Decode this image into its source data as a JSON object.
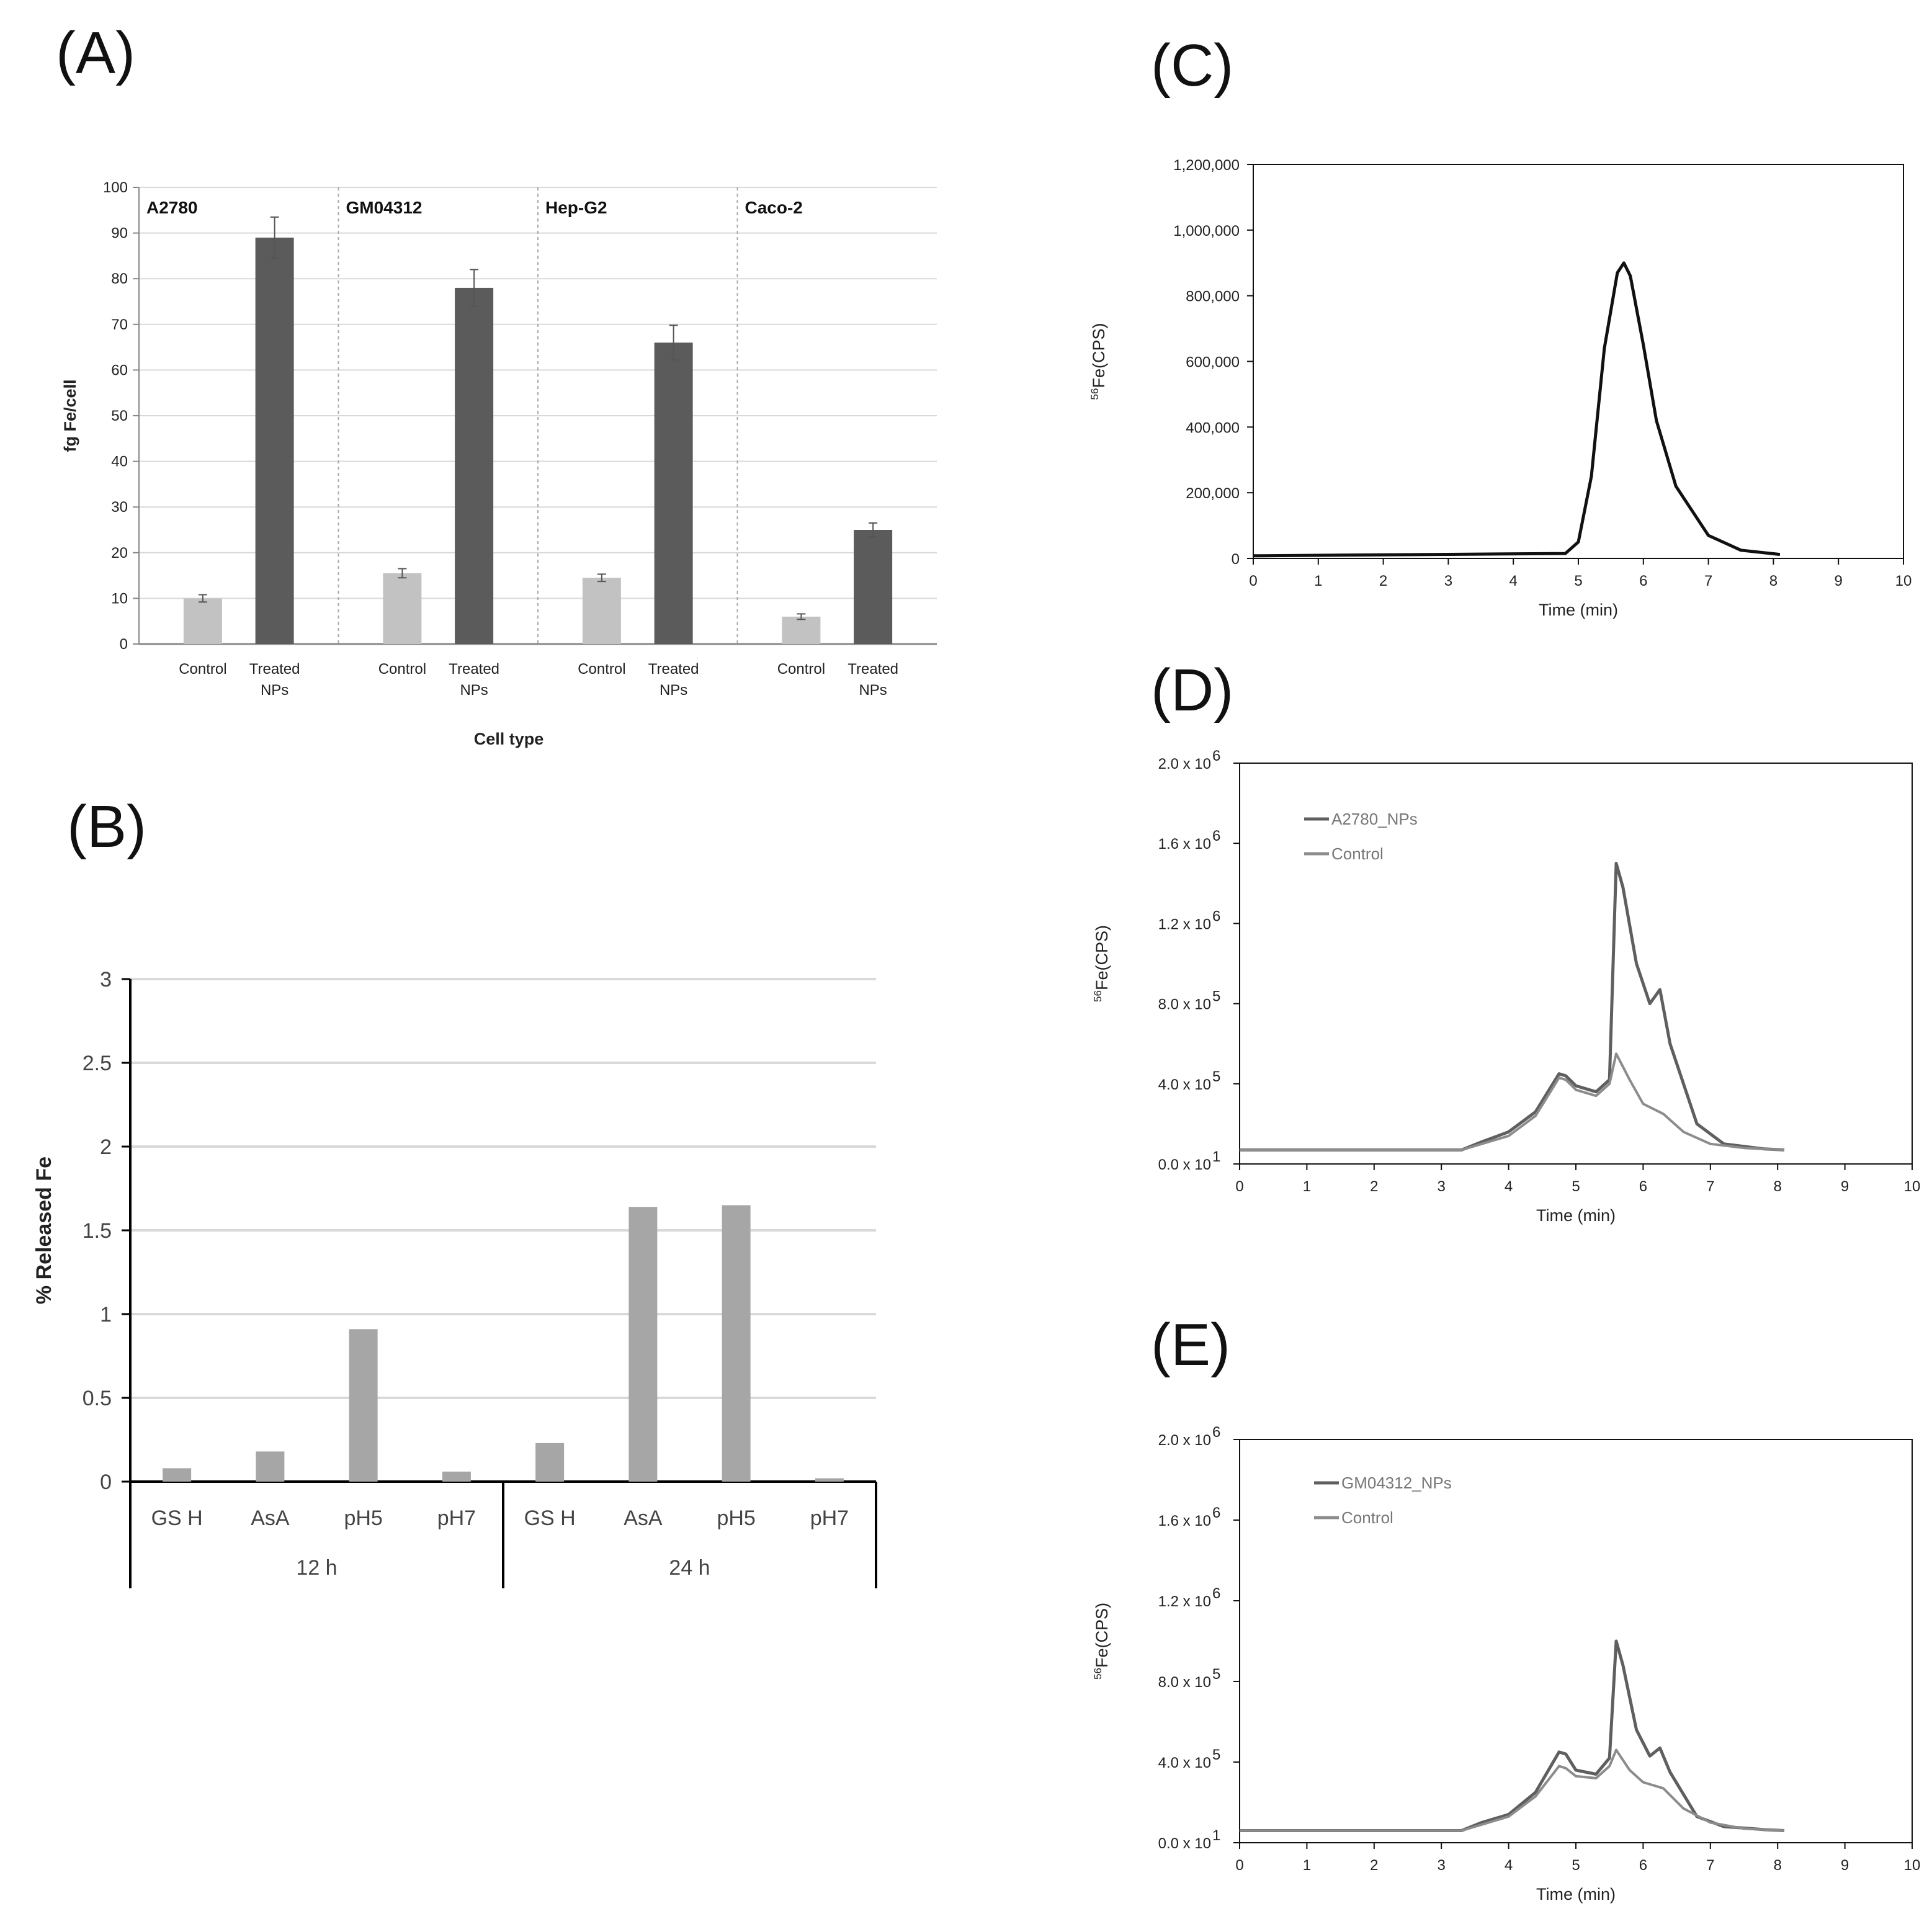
{
  "panels": {
    "A": "(A)",
    "B": "(B)",
    "C": "(C)",
    "D": "(D)",
    "E": "(E)"
  },
  "chart_data": [
    {
      "id": "A",
      "type": "bar",
      "ylabel": "fg Fe/cell",
      "xlabel": "Cell type",
      "ylim": [
        0,
        100
      ],
      "yticks": [
        "0",
        "10",
        "20",
        "30",
        "40",
        "50",
        "60",
        "70",
        "80",
        "90",
        "100"
      ],
      "groups": [
        {
          "name": "A2780",
          "labels": [
            "Control",
            "Treated NPs"
          ],
          "values": [
            10,
            89
          ],
          "errors": [
            0.8,
            4.5
          ]
        },
        {
          "name": "GM04312",
          "labels": [
            "Control",
            "Treated NPs"
          ],
          "values": [
            15.5,
            78
          ],
          "errors": [
            1,
            4
          ]
        },
        {
          "name": "Hep-G2",
          "labels": [
            "Control",
            "Treated NPs"
          ],
          "values": [
            14.5,
            66
          ],
          "errors": [
            0.8,
            3.8
          ]
        },
        {
          "name": "Caco-2",
          "labels": [
            "Control",
            "Treated NPs"
          ],
          "values": [
            6,
            25
          ],
          "errors": [
            0.6,
            1.5
          ]
        }
      ],
      "colors": {
        "control": "#c2c2c2",
        "treated": "#5b5b5b"
      }
    },
    {
      "id": "B",
      "type": "bar",
      "ylabel": "% Released Fe",
      "ylim": [
        0,
        3
      ],
      "yticks": [
        "0",
        "0.5",
        "1",
        "1.5",
        "2",
        "2.5",
        "3"
      ],
      "categories": [
        "GS H",
        "AsA",
        "pH5",
        "pH7",
        "GS H",
        "AsA",
        "pH5",
        "pH7"
      ],
      "groups": [
        "12 h",
        "24 h"
      ],
      "values": [
        0.08,
        0.18,
        0.91,
        0.06,
        0.23,
        1.64,
        1.65,
        0.02
      ],
      "color": "#a6a6a6"
    },
    {
      "id": "C",
      "type": "line",
      "xlabel": "Time (min)",
      "ylabel": "56Fe(CPS)",
      "xlim": [
        0,
        10
      ],
      "ylim": [
        0,
        1200000
      ],
      "xticks": [
        "0",
        "1",
        "2",
        "3",
        "4",
        "5",
        "6",
        "7",
        "8",
        "9",
        "10"
      ],
      "yticks": [
        "0",
        "200,000",
        "400,000",
        "600,000",
        "800,000",
        "1,000,000",
        "1,200,000"
      ],
      "series": [
        {
          "name": "",
          "color": "#111111",
          "x": [
            0,
            4.8,
            5.0,
            5.2,
            5.4,
            5.6,
            5.7,
            5.8,
            6.0,
            6.2,
            6.5,
            7.0,
            7.5,
            8.1
          ],
          "y": [
            8000,
            15000,
            50000,
            250000,
            640000,
            870000,
            900000,
            860000,
            650000,
            420000,
            220000,
            70000,
            25000,
            12000
          ]
        }
      ]
    },
    {
      "id": "D",
      "type": "line",
      "xlabel": "Time (min)",
      "ylabel": "56Fe(CPS)",
      "xlim": [
        0,
        10
      ],
      "ylim": [
        0,
        2000000
      ],
      "xticks": [
        "0",
        "1",
        "2",
        "3",
        "4",
        "5",
        "6",
        "7",
        "8",
        "9",
        "10"
      ],
      "ytick_mant": [
        "0.0 x 10",
        "4.0 x 10",
        "8.0 x 10",
        "1.2 x 10",
        "1.6 x 10",
        "2.0 x 10"
      ],
      "ytick_exp": [
        "1",
        "5",
        "5",
        "6",
        "6",
        "6"
      ],
      "series": [
        {
          "name": "A2780_NPs",
          "color": "#5f5f5f",
          "x": [
            0,
            3.3,
            3.6,
            4.0,
            4.4,
            4.75,
            4.85,
            5.0,
            5.3,
            5.5,
            5.6,
            5.7,
            5.9,
            6.1,
            6.25,
            6.4,
            6.8,
            7.2,
            7.8,
            8.1
          ],
          "y": [
            70000,
            70000,
            110000,
            160000,
            260000,
            450000,
            440000,
            390000,
            360000,
            420000,
            1500000,
            1380000,
            1000000,
            800000,
            870000,
            600000,
            200000,
            100000,
            75000,
            70000
          ]
        },
        {
          "name": "Control",
          "color": "#8c8c8c",
          "x": [
            0,
            3.3,
            3.6,
            4.0,
            4.4,
            4.75,
            4.85,
            5.0,
            5.3,
            5.5,
            5.6,
            5.8,
            6.0,
            6.3,
            6.6,
            7.0,
            7.5,
            8.1
          ],
          "y": [
            70000,
            70000,
            100000,
            140000,
            240000,
            430000,
            420000,
            370000,
            340000,
            400000,
            550000,
            420000,
            300000,
            250000,
            160000,
            100000,
            80000,
            70000
          ]
        }
      ]
    },
    {
      "id": "E",
      "type": "line",
      "xlabel": "Time (min)",
      "ylabel": "56Fe(CPS)",
      "xlim": [
        0,
        10
      ],
      "ylim": [
        0,
        2000000
      ],
      "xticks": [
        "0",
        "1",
        "2",
        "3",
        "4",
        "5",
        "6",
        "7",
        "8",
        "9",
        "10"
      ],
      "ytick_mant": [
        "0.0 x 10",
        "4.0 x 10",
        "8.0 x 10",
        "1.2 x 10",
        "1.6 x 10",
        "2.0 x 10"
      ],
      "ytick_exp": [
        "1",
        "5",
        "5",
        "6",
        "6",
        "6"
      ],
      "series": [
        {
          "name": "GM04312_NPs",
          "color": "#5f5f5f",
          "x": [
            0,
            3.3,
            3.6,
            4.0,
            4.4,
            4.75,
            4.85,
            5.0,
            5.3,
            5.5,
            5.6,
            5.7,
            5.9,
            6.1,
            6.25,
            6.4,
            6.8,
            7.2,
            7.8,
            8.1
          ],
          "y": [
            60000,
            60000,
            100000,
            140000,
            250000,
            450000,
            440000,
            360000,
            340000,
            420000,
            1000000,
            880000,
            560000,
            430000,
            470000,
            350000,
            130000,
            80000,
            65000,
            60000
          ]
        },
        {
          "name": "Control",
          "color": "#8c8c8c",
          "x": [
            0,
            3.3,
            3.6,
            4.0,
            4.4,
            4.75,
            4.85,
            5.0,
            5.3,
            5.5,
            5.6,
            5.8,
            6.0,
            6.3,
            6.6,
            7.0,
            7.5,
            8.1
          ],
          "y": [
            60000,
            60000,
            90000,
            130000,
            230000,
            380000,
            370000,
            330000,
            320000,
            380000,
            460000,
            360000,
            300000,
            270000,
            170000,
            100000,
            70000,
            60000
          ]
        }
      ]
    }
  ]
}
